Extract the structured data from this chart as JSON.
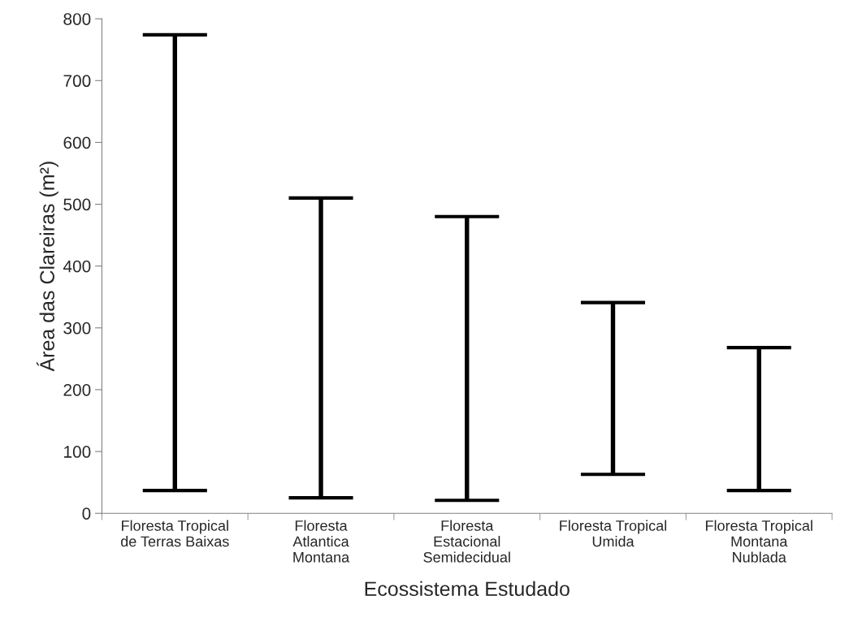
{
  "chart_data": {
    "type": "bar",
    "xlabel": "Ecossistema Estudado",
    "ylabel": "Área das Clareiras (m²)",
    "categories": [
      "Floresta Tropical\nde Terras Baixas",
      "Floresta\nAtlantica\nMontana",
      "Floresta\nEstacional\nSemidecidual",
      "Floresta Tropical\nUmida",
      "Floresta Tropical\nMontana\nNublada"
    ],
    "base": [
      37,
      25,
      21,
      63,
      37
    ],
    "values": [
      737,
      485,
      459,
      278,
      231
    ],
    "color": "#000000",
    "ylim": [
      0,
      800
    ],
    "yticks": [
      0,
      100,
      200,
      300,
      400,
      500,
      600,
      700,
      800
    ],
    "grid": false,
    "legend": false
  }
}
